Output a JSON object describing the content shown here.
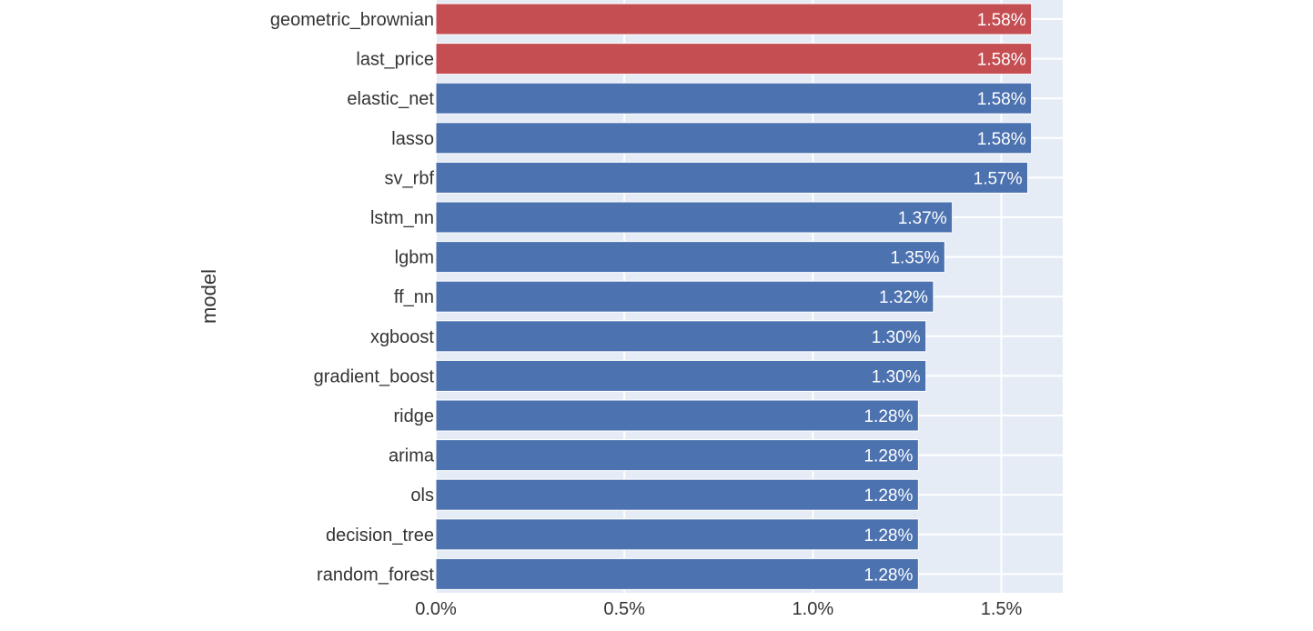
{
  "chart_data": {
    "type": "bar",
    "orientation": "horizontal",
    "ylabel": "model",
    "xlabel": "",
    "xlim": [
      0,
      0.0166
    ],
    "x_tick_values": [
      0,
      0.005,
      0.01,
      0.015
    ],
    "x_tick_labels": [
      "0.0%",
      "0.5%",
      "1.0%",
      "1.5%"
    ],
    "grid": true,
    "plot_background": "#e5ecf6",
    "categories": [
      "geometric_brownian",
      "last_price",
      "elastic_net",
      "lasso",
      "sv_rbf",
      "lstm_nn",
      "lgbm",
      "ff_nn",
      "xgboost",
      "gradient_boost",
      "ridge",
      "arima",
      "ols",
      "decision_tree",
      "random_forest"
    ],
    "values": [
      0.0158,
      0.0158,
      0.0158,
      0.0158,
      0.0157,
      0.0137,
      0.0135,
      0.0132,
      0.013,
      0.013,
      0.0128,
      0.0128,
      0.0128,
      0.0128,
      0.0128
    ],
    "data_labels": [
      "1.58%",
      "1.58%",
      "1.58%",
      "1.58%",
      "1.57%",
      "1.37%",
      "1.35%",
      "1.32%",
      "1.30%",
      "1.30%",
      "1.28%",
      "1.28%",
      "1.28%",
      "1.28%",
      "1.28%"
    ],
    "bar_colors": [
      "#c44e52",
      "#c44e52",
      "#4c72b0",
      "#4c72b0",
      "#4c72b0",
      "#4c72b0",
      "#4c72b0",
      "#4c72b0",
      "#4c72b0",
      "#4c72b0",
      "#4c72b0",
      "#4c72b0",
      "#4c72b0",
      "#4c72b0",
      "#4c72b0"
    ],
    "colors": {
      "highlight": "#c44e52",
      "default": "#4c72b0"
    }
  }
}
